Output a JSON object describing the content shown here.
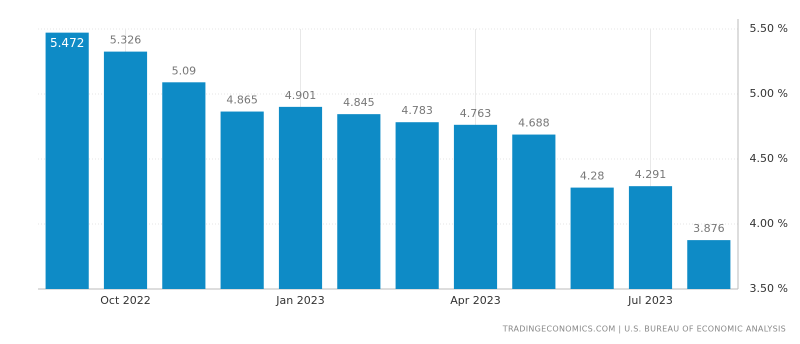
{
  "chart_data": {
    "type": "bar",
    "categories": [
      null,
      "Oct 2022",
      null,
      null,
      "Jan 2023",
      null,
      null,
      "Apr 2023",
      null,
      null,
      "Jul 2023",
      null
    ],
    "values": [
      5.472,
      5.326,
      5.09,
      4.865,
      4.901,
      4.845,
      4.783,
      4.763,
      4.688,
      4.28,
      4.291,
      3.876
    ],
    "color": "#0e8bc6",
    "ylim": [
      3.5,
      5.5
    ],
    "yticks": [
      {
        "value": 3.5,
        "label": "3.50 %"
      },
      {
        "value": 4.0,
        "label": "4.00 %"
      },
      {
        "value": 4.5,
        "label": "4.50 %"
      },
      {
        "value": 5.0,
        "label": "5.00 %"
      },
      {
        "value": 5.5,
        "label": "5.50 %"
      }
    ],
    "grid": true,
    "source": "TRADINGECONOMICS.COM | U.S. BUREAU OF ECONOMIC ANALYSIS"
  }
}
